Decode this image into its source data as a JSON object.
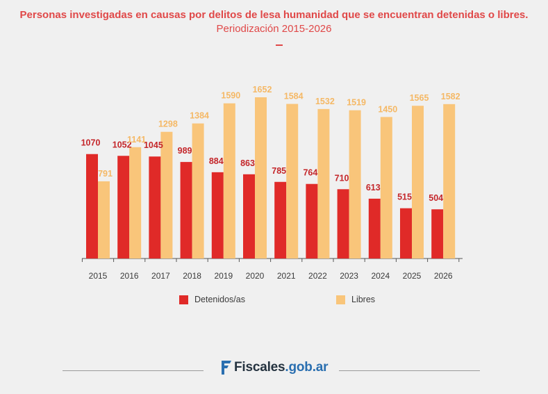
{
  "header": {
    "title_bold": "Personas investigadas en causas por delitos de lesa humanidad que se encuentran detenidas o libres.",
    "title_light": "Periodización 2015-2026"
  },
  "colors": {
    "title": "#e04848",
    "detenidos": "#e02a28",
    "libres": "#f9c57a",
    "detenidos_label": "#c4262a",
    "libres_label": "#f5b865",
    "axis": "#555555",
    "tick_text": "#3a3a3a"
  },
  "legend": {
    "detenidos": "Detenidos/as",
    "libres": "Libres"
  },
  "footer": {
    "brand_main": "Fiscales",
    "brand_sub": ".gob.ar"
  },
  "chart_data": {
    "type": "bar",
    "categories": [
      "2015",
      "2016",
      "2017",
      "2018",
      "2019",
      "2020",
      "2021",
      "2022",
      "2023",
      "2024",
      "2025",
      "2026"
    ],
    "series": [
      {
        "name": "Detenidos/as",
        "values": [
          1070,
          1052,
          1045,
          989,
          884,
          863,
          785,
          764,
          710,
          613,
          515,
          504
        ]
      },
      {
        "name": "Libres",
        "values": [
          791,
          1141,
          1298,
          1384,
          1590,
          1652,
          1584,
          1532,
          1519,
          1450,
          1565,
          1582
        ]
      }
    ],
    "ylim": [
      0,
      1652
    ],
    "grid": false,
    "legend_position": "bottom",
    "data_labels": true
  }
}
